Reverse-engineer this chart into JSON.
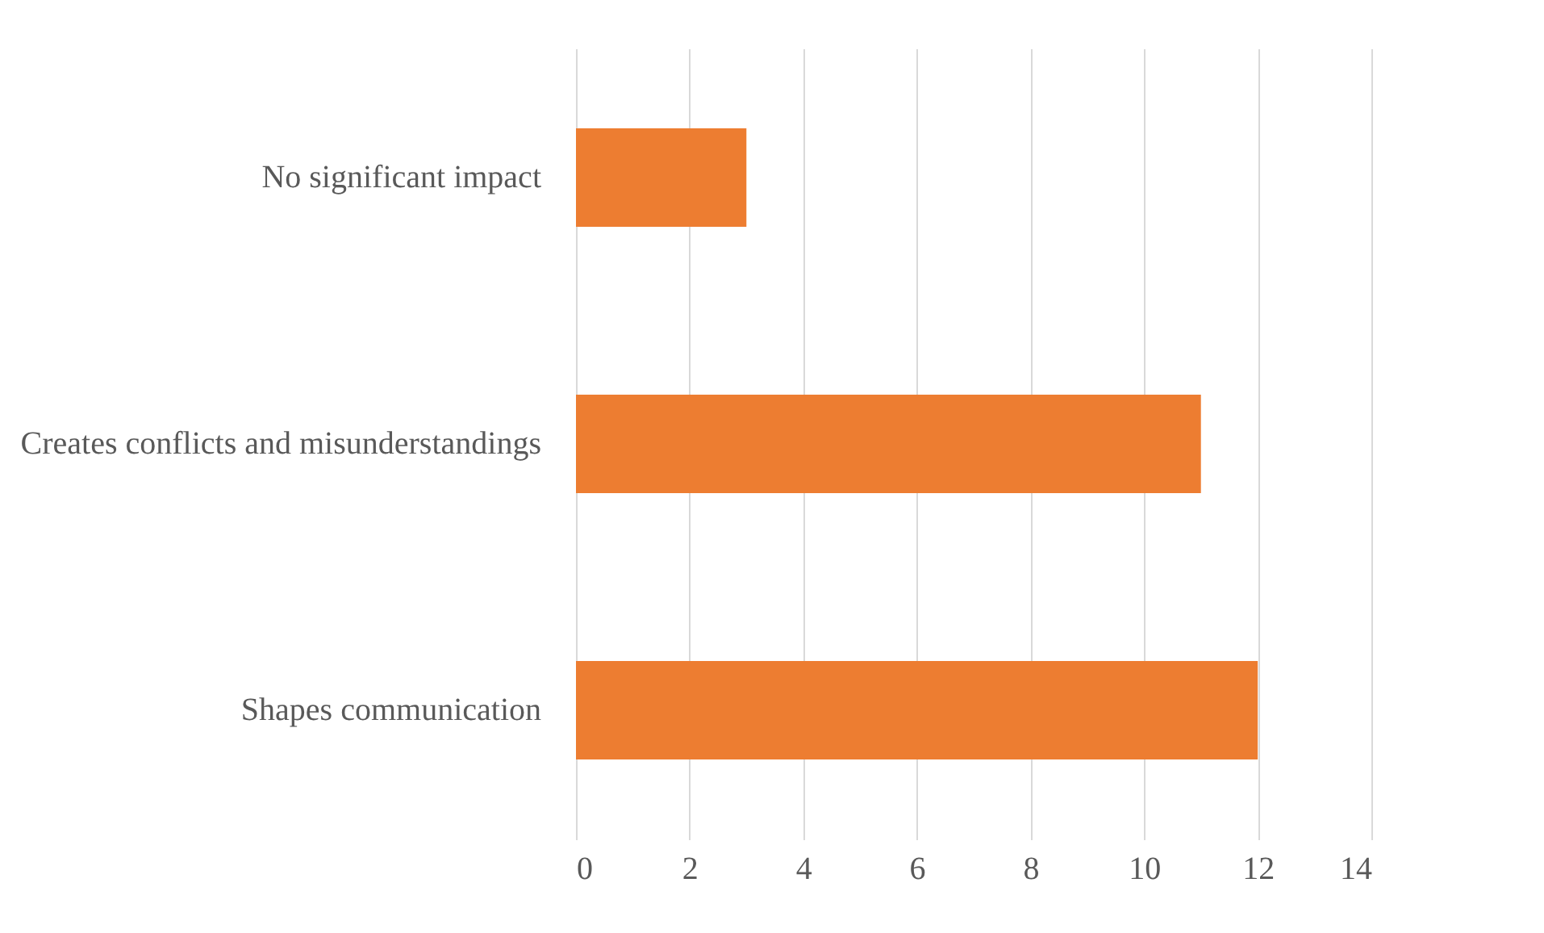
{
  "chart_data": {
    "type": "bar",
    "orientation": "horizontal",
    "categories": [
      "No significant impact",
      "Creates conflicts and misunderstandings",
      "Shapes communication"
    ],
    "values": [
      3,
      11,
      12
    ],
    "color": "#ed7d31",
    "xlim": [
      0,
      14
    ],
    "xticks": [
      0,
      2,
      4,
      6,
      8,
      10,
      12,
      14
    ],
    "grid": "x"
  }
}
